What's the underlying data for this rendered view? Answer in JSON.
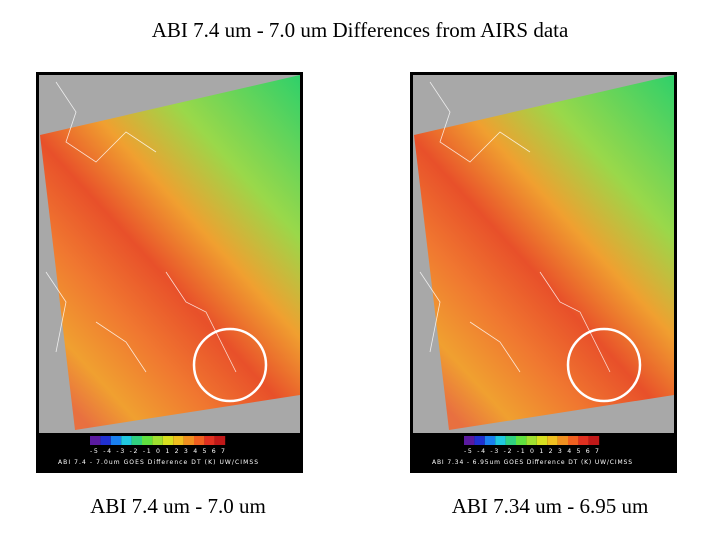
{
  "title": "ABI 7.4 um - 7.0 um Differences from AIRS data",
  "panels": [
    {
      "caption": "ABI 7.4 um - 7.0 um",
      "colorbar_ticks": "-5 -4 -3 -2 -1 0 1 2 3 4 5 6 7",
      "colorbar_label": "ABI 7.4 - 7.0um GOES Difference DT (K) UW/CIMSS"
    },
    {
      "caption": "ABI 7.34 um - 6.95 um",
      "colorbar_ticks": "-5 -4 -3 -2 -1 0 1 2 3 4 5 6 7",
      "colorbar_label": "ABI 7.34 - 6.95um GOES Difference DT (K) UW/CIMSS"
    }
  ]
}
